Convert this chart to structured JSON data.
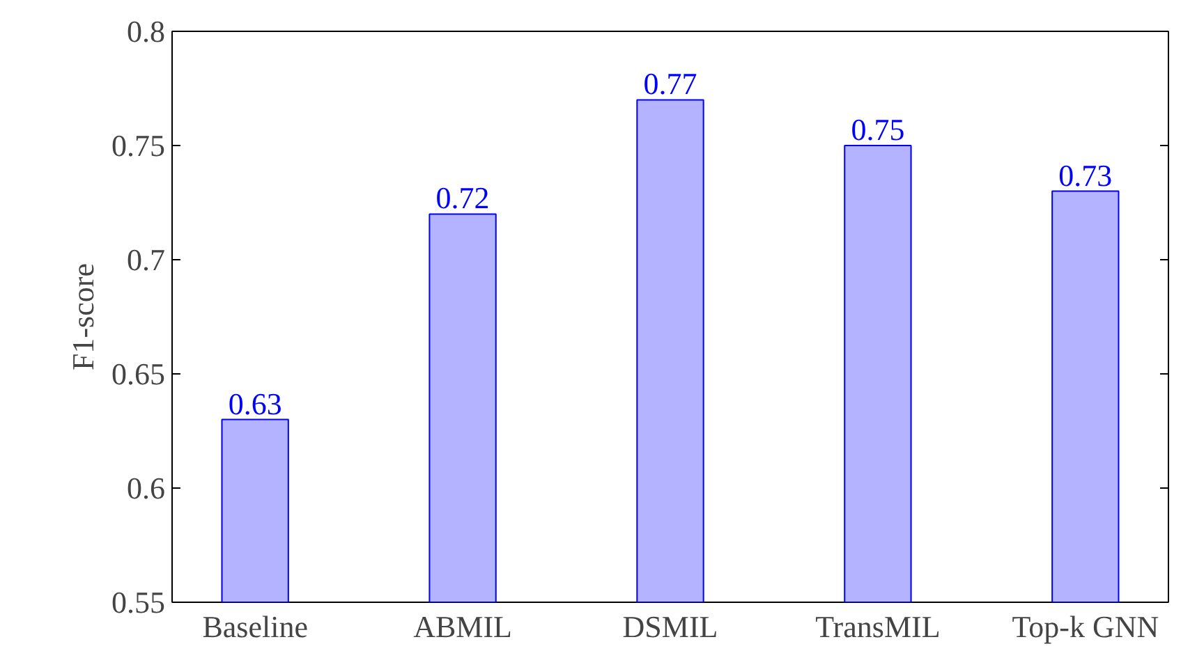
{
  "chart_data": {
    "type": "bar",
    "ylabel": "F1-score",
    "categories": [
      "Baseline",
      "ABMIL",
      "DSMIL",
      "TransMIL",
      "Top-k GNN"
    ],
    "values": [
      0.63,
      0.72,
      0.77,
      0.75,
      0.73
    ],
    "color": "#b3b3ff",
    "ylim": [
      0.55,
      0.8
    ],
    "yticks": [
      0.55,
      0.6,
      0.65,
      0.7,
      0.75,
      0.8
    ],
    "data_labels": true
  }
}
